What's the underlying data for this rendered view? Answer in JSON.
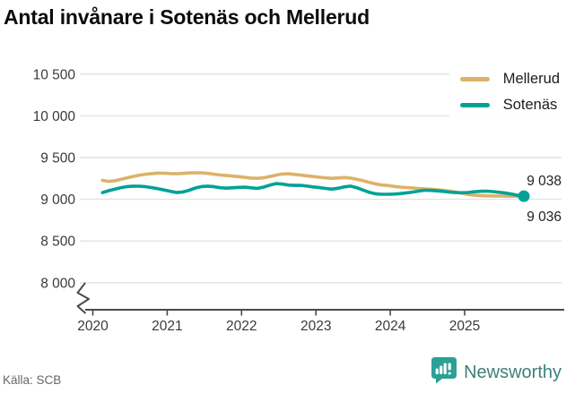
{
  "title": "Antal invånare i Sotenäs och Mellerud",
  "source": "Källa: SCB",
  "branding": {
    "name": "Newsworthy",
    "icon_color": "#2da094",
    "text_color": "#3e7f7b"
  },
  "legend": [
    {
      "label": "Mellerud",
      "color": "#dcb269"
    },
    {
      "label": "Sotenäs",
      "color": "#00a295"
    }
  ],
  "end_labels": {
    "top": "9 038",
    "bottom": "9 036"
  },
  "chart_data": {
    "type": "line",
    "title": "Antal invånare i Sotenäs och Mellerud",
    "xlabel": "",
    "ylabel": "",
    "grid": true,
    "legend_position": "top-right",
    "x_axis": {
      "ticks": [
        2020,
        2021,
        2022,
        2023,
        2024,
        2025
      ]
    },
    "y_axis": {
      "tick_values": [
        10500,
        10000,
        9500,
        9000,
        8500,
        8000
      ],
      "tick_labels": [
        "10 500",
        "10 000",
        "9 500",
        "9 000",
        "8 500",
        "8 000"
      ],
      "axis_break": true,
      "range": [
        7900,
        10600
      ]
    },
    "x_start": 2020.13,
    "x_step_years": 0.083333,
    "frequency": "monthly",
    "series": [
      {
        "name": "Mellerud",
        "color": "#dcb269",
        "end_value": 9036,
        "end_dot": false,
        "values": [
          9226,
          9215,
          9222,
          9240,
          9258,
          9275,
          9290,
          9300,
          9308,
          9314,
          9312,
          9308,
          9306,
          9310,
          9315,
          9318,
          9316,
          9310,
          9300,
          9291,
          9284,
          9278,
          9271,
          9262,
          9254,
          9251,
          9258,
          9272,
          9290,
          9303,
          9306,
          9298,
          9290,
          9281,
          9273,
          9264,
          9256,
          9251,
          9255,
          9261,
          9254,
          9240,
          9223,
          9204,
          9186,
          9172,
          9165,
          9155,
          9146,
          9141,
          9136,
          9130,
          9124,
          9120,
          9114,
          9107,
          9098,
          9086,
          9072,
          9058,
          9048,
          9043,
          9041,
          9040,
          9039,
          9038,
          9037,
          9036,
          9036
        ]
      },
      {
        "name": "Sotenäs",
        "color": "#00a295",
        "end_value": 9038,
        "end_dot": true,
        "values": [
          9080,
          9103,
          9122,
          9140,
          9152,
          9158,
          9157,
          9150,
          9140,
          9126,
          9110,
          9094,
          9080,
          9088,
          9108,
          9135,
          9152,
          9158,
          9150,
          9138,
          9133,
          9138,
          9143,
          9145,
          9137,
          9131,
          9146,
          9170,
          9188,
          9182,
          9171,
          9166,
          9167,
          9158,
          9148,
          9140,
          9130,
          9121,
          9132,
          9148,
          9158,
          9140,
          9112,
          9085,
          9066,
          9060,
          9060,
          9062,
          9068,
          9076,
          9086,
          9098,
          9108,
          9106,
          9101,
          9094,
          9086,
          9080,
          9078,
          9082,
          9090,
          9096,
          9098,
          9092,
          9084,
          9075,
          9062,
          9048,
          9038
        ]
      }
    ]
  }
}
